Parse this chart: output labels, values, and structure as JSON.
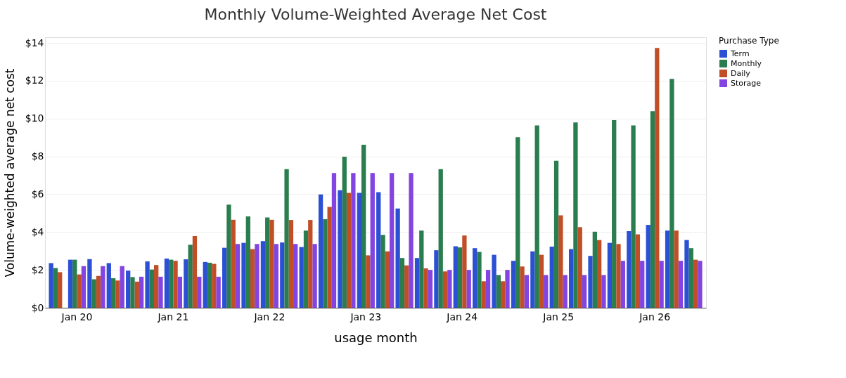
{
  "chart_data": {
    "type": "bar",
    "title": "Monthly Volume-Weighted Average Net Cost",
    "xlabel": "usage month",
    "ylabel": "Volume-weighted average net cost",
    "legend_title": "Purchase Type",
    "categories": [
      null,
      "Jan 20",
      null,
      null,
      null,
      null,
      "Jan 21",
      null,
      null,
      null,
      null,
      "Jan 22",
      null,
      null,
      null,
      null,
      "Jan 23",
      null,
      null,
      null,
      null,
      "Jan 24",
      null,
      null,
      null,
      null,
      "Jan 25",
      null,
      null,
      null,
      null,
      "Jan 26",
      null,
      null
    ],
    "series": [
      {
        "name": "Term",
        "color": "#2b50d4",
        "values": [
          2.36,
          2.54,
          2.57,
          2.36,
          1.96,
          2.45,
          2.6,
          2.56,
          2.42,
          3.17,
          3.43,
          3.52,
          3.45,
          3.21,
          5.99,
          6.21,
          6.07,
          6.11,
          5.25,
          2.63,
          3.04,
          3.25,
          3.15,
          2.8,
          2.48,
          2.98,
          3.23,
          3.1,
          2.74,
          3.43,
          4.05,
          4.38,
          4.08,
          3.58
        ]
      },
      {
        "name": "Monthly",
        "color": "#2a7d4f",
        "values": [
          2.1,
          2.54,
          1.5,
          1.56,
          1.62,
          2.02,
          2.54,
          3.33,
          2.38,
          5.45,
          4.83,
          4.77,
          7.33,
          4.08,
          4.68,
          7.99,
          8.62,
          3.85,
          2.63,
          4.08,
          7.33,
          3.19,
          2.95,
          1.73,
          9.02,
          9.64,
          7.77,
          9.8,
          4.02,
          9.92,
          9.64,
          10.39,
          12.1,
          3.15
        ]
      },
      {
        "name": "Daily",
        "color": "#c04f28",
        "values": [
          1.88,
          1.76,
          1.68,
          1.44,
          1.38,
          2.26,
          2.48,
          3.79,
          2.32,
          4.65,
          3.1,
          4.65,
          4.64,
          4.64,
          5.33,
          6.07,
          2.77,
          2.98,
          2.24,
          2.08,
          1.92,
          3.82,
          1.4,
          1.4,
          2.18,
          2.8,
          4.88,
          4.26,
          3.58,
          3.37,
          3.88,
          13.73,
          4.08,
          2.54
        ]
      },
      {
        "name": "Storage",
        "color": "#8344e2",
        "values": [
          null,
          2.2,
          2.2,
          2.2,
          1.64,
          1.64,
          1.64,
          1.64,
          1.64,
          3.37,
          3.37,
          3.37,
          3.37,
          3.37,
          7.12,
          7.12,
          7.12,
          7.12,
          7.12,
          2.0,
          2.0,
          2.0,
          2.0,
          2.0,
          1.73,
          1.73,
          1.73,
          1.73,
          1.73,
          2.48,
          2.48,
          2.48,
          2.48,
          2.48
        ]
      }
    ],
    "ylim": [
      0,
      14.3
    ],
    "yticks": [
      {
        "value": 0,
        "label": "$0"
      },
      {
        "value": 2,
        "label": "$2"
      },
      {
        "value": 4,
        "label": "$4"
      },
      {
        "value": 6,
        "label": "$6"
      },
      {
        "value": 8,
        "label": "$8"
      },
      {
        "value": 10,
        "label": "$10"
      },
      {
        "value": 12,
        "label": "$12"
      },
      {
        "value": 14,
        "label": "$14"
      }
    ],
    "grid": "y",
    "legend": "top right"
  }
}
